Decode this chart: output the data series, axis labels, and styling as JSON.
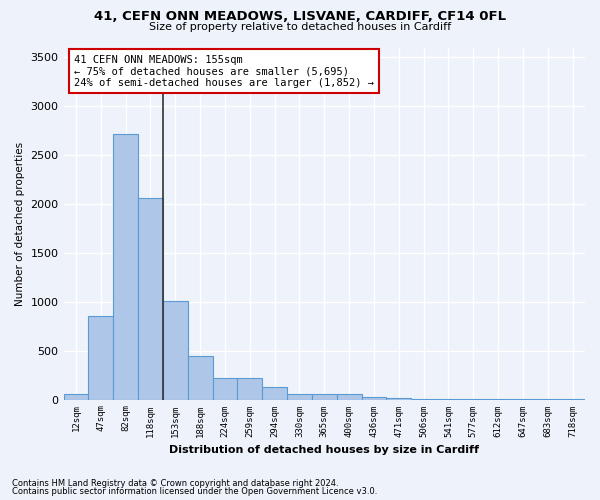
{
  "title": "41, CEFN ONN MEADOWS, LISVANE, CARDIFF, CF14 0FL",
  "subtitle": "Size of property relative to detached houses in Cardiff",
  "xlabel": "Distribution of detached houses by size in Cardiff",
  "ylabel": "Number of detached properties",
  "categories": [
    "12sqm",
    "47sqm",
    "82sqm",
    "118sqm",
    "153sqm",
    "188sqm",
    "224sqm",
    "259sqm",
    "294sqm",
    "330sqm",
    "365sqm",
    "400sqm",
    "436sqm",
    "471sqm",
    "506sqm",
    "541sqm",
    "577sqm",
    "612sqm",
    "647sqm",
    "683sqm",
    "718sqm"
  ],
  "values": [
    60,
    850,
    2720,
    2060,
    1010,
    450,
    220,
    220,
    130,
    60,
    55,
    55,
    30,
    15,
    10,
    8,
    5,
    3,
    2,
    2,
    1
  ],
  "bar_color": "#aec6e8",
  "bar_edgecolor": "#5b9bd5",
  "property_label": "41 CEFN ONN MEADOWS: 155sqm",
  "annotation_line1": "← 75% of detached houses are smaller (5,695)",
  "annotation_line2": "24% of semi-detached houses are larger (1,852) →",
  "vline_color": "#333333",
  "annotation_box_edgecolor": "#cc0000",
  "background_color": "#eef2fa",
  "grid_color": "#ffffff",
  "ylim": [
    0,
    3600
  ],
  "vline_xidx": 3.5,
  "footer1": "Contains HM Land Registry data © Crown copyright and database right 2024.",
  "footer2": "Contains public sector information licensed under the Open Government Licence v3.0."
}
